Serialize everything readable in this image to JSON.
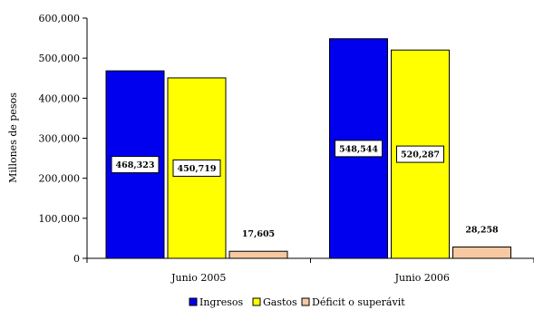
{
  "chart_data": {
    "type": "bar",
    "title": "",
    "xlabel": "",
    "ylabel": "Millones de pesos",
    "ylim": [
      0,
      600000
    ],
    "yticks": [
      "0",
      "100,000",
      "200,000",
      "300,000",
      "400,000",
      "500,000",
      "600,000"
    ],
    "categories": [
      "Junio 2005",
      "Junio 2006"
    ],
    "series": [
      {
        "name": "Ingresos",
        "color": "#0000ee",
        "values": [
          468323,
          548544
        ],
        "labels": [
          "468,323",
          "548,544"
        ]
      },
      {
        "name": "Gastos",
        "color": "#ffff00",
        "values": [
          450719,
          520287
        ],
        "labels": [
          "450,719",
          "520,287"
        ]
      },
      {
        "name": "Déficit o superávit",
        "color": "#f8c8a0",
        "values": [
          17605,
          28258
        ],
        "labels": [
          "17,605",
          "28,258"
        ]
      }
    ],
    "grid": false,
    "legend": "bottom"
  }
}
